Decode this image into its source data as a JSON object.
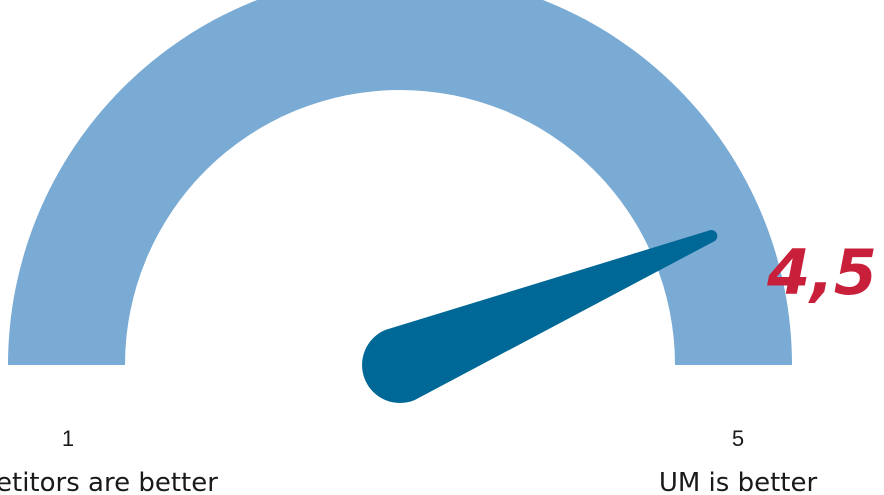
{
  "chart_data": {
    "type": "gauge",
    "min": 1,
    "max": 5,
    "value": 4.5,
    "value_label": "4,5",
    "min_label": "1",
    "max_label": "5",
    "min_caption": "etitors are better",
    "max_caption": "UM is better",
    "colors": {
      "arc": "#7aabd4",
      "needle": "#006896",
      "value": "#c8203a"
    }
  }
}
